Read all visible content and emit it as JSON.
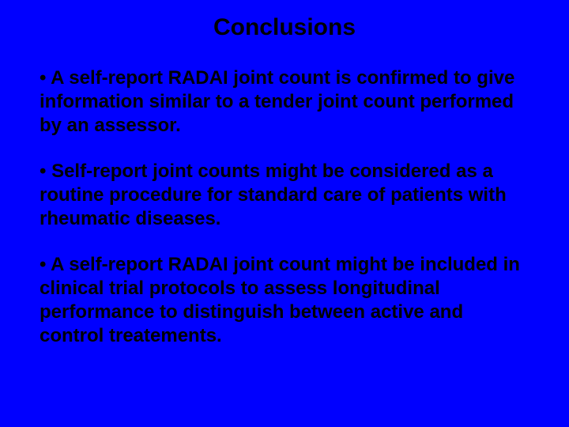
{
  "slide": {
    "background_color": "#0000ff",
    "text_color": "#000000",
    "title_fontsize": 30,
    "body_fontsize": 24,
    "font_weight": "bold",
    "font_family": "Arial",
    "title": "Conclusions",
    "bullets": [
      "• A self-report RADAI joint count is confirmed to give information similar to a tender joint count performed by an assessor.",
      "• Self-report joint counts might be considered as a routine procedure for standard care of patients with rheumatic diseases.",
      "• A self-report RADAI joint count might be included in clinical trial protocols to assess longitudinal performance to distinguish between active and control treatements."
    ]
  }
}
